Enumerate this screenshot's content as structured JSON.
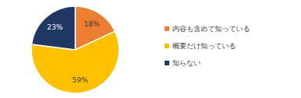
{
  "chart_data": {
    "type": "pie",
    "categories": [
      "内容も含めて知っている",
      "概要だけ知っている",
      "知らない"
    ],
    "values": [
      18,
      59,
      23
    ],
    "value_labels": [
      "18%",
      "59%",
      "23%"
    ],
    "colors": [
      "#ed7d31",
      "#ffc000",
      "#203864"
    ],
    "data_labels": true,
    "legend": "right"
  }
}
